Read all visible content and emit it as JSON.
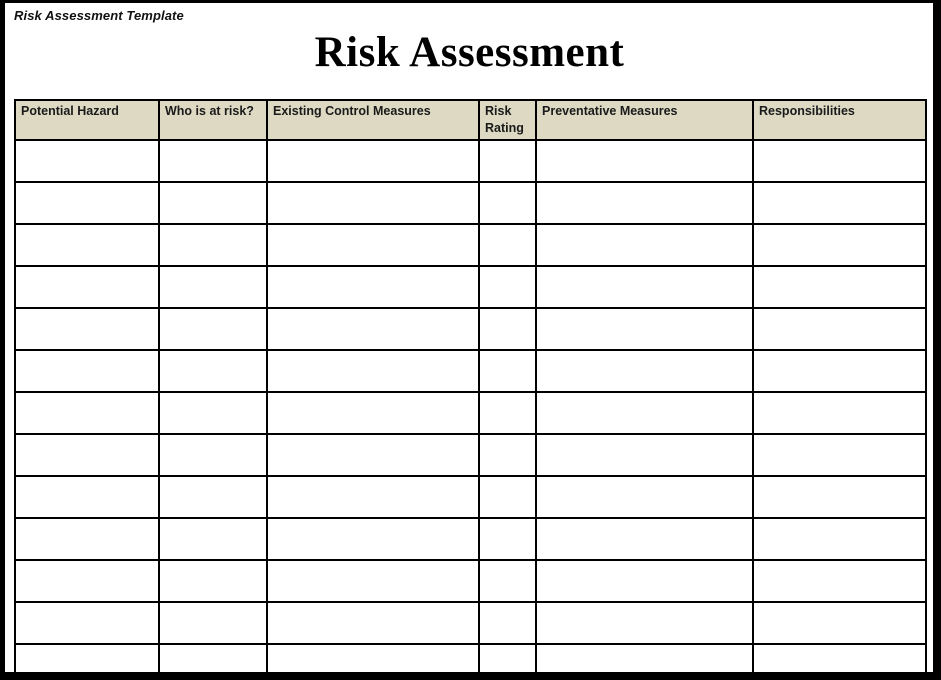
{
  "page": {
    "label": "Risk Assessment Template",
    "title": "Risk Assessment"
  },
  "table": {
    "columns": [
      {
        "key": "potential-hazard",
        "label": "Potential Hazard"
      },
      {
        "key": "who-is-at-risk",
        "label": "Who is at risk?"
      },
      {
        "key": "existing-controls",
        "label": "Existing Control Measures"
      },
      {
        "key": "risk-rating",
        "label": "Risk Rating"
      },
      {
        "key": "preventative-measures",
        "label": "Preventative Measures"
      },
      {
        "key": "responsibilities",
        "label": "Responsibilities"
      }
    ],
    "empty_row_count": 13
  },
  "colors": {
    "header_bg": "#ddd9c3",
    "border": "#000000",
    "frame": "#000000",
    "page_bg": "#ffffff"
  }
}
